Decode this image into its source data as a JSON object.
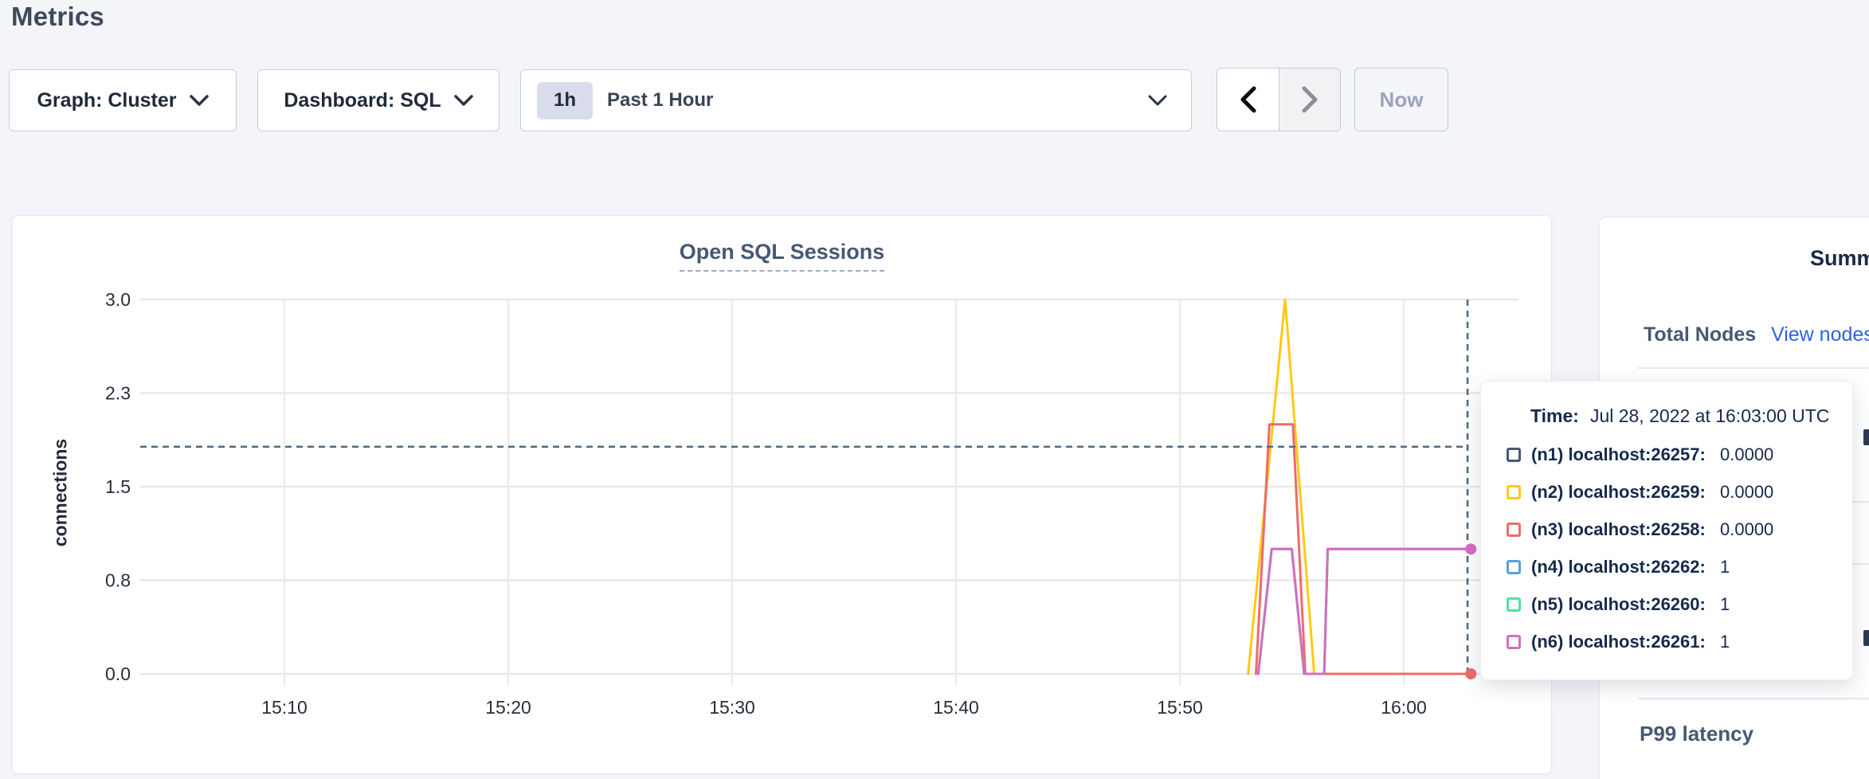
{
  "page": {
    "title": "Metrics"
  },
  "controls": {
    "graph_dropdown": {
      "label": "Graph: Cluster"
    },
    "dashboard_dropdown": {
      "label": "Dashboard: SQL"
    },
    "time_selector": {
      "badge": "1h",
      "label": "Past 1 Hour"
    },
    "now_button_label": "Now"
  },
  "chart_data": {
    "type": "line",
    "title": "Open SQL Sessions",
    "ylabel": "connections",
    "ylim": [
      0,
      3
    ],
    "grid": true,
    "yticks": [
      {
        "label": "3.0",
        "value": 3
      },
      {
        "label": "2.3",
        "value": 2.25
      },
      {
        "label": "1.5",
        "value": 1.5
      },
      {
        "label": "0.8",
        "value": 0.75
      },
      {
        "label": "0.0",
        "value": 0
      }
    ],
    "xticks": [
      {
        "label": "15:10",
        "minute": 10
      },
      {
        "label": "15:20",
        "minute": 20
      },
      {
        "label": "15:30",
        "minute": 30
      },
      {
        "label": "15:40",
        "minute": 40
      },
      {
        "label": "15:50",
        "minute": 50
      },
      {
        "label": "16:00",
        "minute": 60
      }
    ],
    "series": [
      {
        "name": "(n1) localhost:26257",
        "color": "#475872",
        "value_at_cursor": "0.0000",
        "points": [
          [
            55.6,
            0
          ],
          [
            63,
            0
          ]
        ]
      },
      {
        "name": "(n4) localhost:26262",
        "color": "#5b9fd6",
        "value_at_cursor": "1",
        "points": [
          [
            53.5,
            0
          ],
          [
            54.1,
            1
          ],
          [
            55.0,
            1
          ],
          [
            55.55,
            0
          ],
          [
            56.45,
            0
          ],
          [
            56.6,
            1
          ],
          [
            63,
            1
          ]
        ]
      },
      {
        "name": "(n5) localhost:26260",
        "color": "#4fe2a1",
        "value_at_cursor": "1",
        "points": [
          [
            53.5,
            0
          ],
          [
            54.1,
            1
          ],
          [
            55.0,
            1
          ],
          [
            55.55,
            0
          ],
          [
            56.45,
            0
          ],
          [
            56.6,
            1
          ],
          [
            63,
            1
          ]
        ]
      },
      {
        "name": "(n2) localhost:26259",
        "color": "#ffc913",
        "value_at_cursor": "0.0000",
        "points": [
          [
            53.05,
            0
          ],
          [
            54.7,
            3
          ],
          [
            56.0,
            0
          ],
          [
            63,
            0
          ]
        ]
      },
      {
        "name": "(n3) localhost:26258",
        "color": "#ef6a6a",
        "value_at_cursor": "0.0000",
        "points": [
          [
            53.4,
            0
          ],
          [
            54.0,
            2
          ],
          [
            55.05,
            2
          ],
          [
            55.6,
            0
          ],
          [
            63,
            0
          ]
        ]
      },
      {
        "name": "(n6) localhost:26261",
        "color": "#d36fc0",
        "value_at_cursor": "1",
        "points": [
          [
            53.5,
            0
          ],
          [
            54.1,
            1
          ],
          [
            55.0,
            1
          ],
          [
            55.55,
            0
          ],
          [
            56.45,
            0
          ],
          [
            56.6,
            1
          ],
          [
            63,
            1
          ]
        ]
      }
    ],
    "crosshair": {
      "minute": 62.85,
      "hline_value": 1.82,
      "dots": [
        {
          "series": "(n6) localhost:26261",
          "minute": 63,
          "value": 1
        },
        {
          "series": "(n3) localhost:26258",
          "minute": 63,
          "value": 0
        }
      ]
    }
  },
  "tooltip": {
    "time_label": "Time:",
    "time_value": "Jul 28, 2022 at 16:03:00 UTC",
    "rows": [
      {
        "swatch": "#475872",
        "label": "(n1) localhost:26257:",
        "value": "0.0000"
      },
      {
        "swatch": "#ffc913",
        "label": "(n2) localhost:26259:",
        "value": "0.0000"
      },
      {
        "swatch": "#ef6a6a",
        "label": "(n3) localhost:26258:",
        "value": "0.0000"
      },
      {
        "swatch": "#5b9fd6",
        "label": "(n4) localhost:26262:",
        "value": "1"
      },
      {
        "swatch": "#4fe2a1",
        "label": "(n5) localhost:26260:",
        "value": "1"
      },
      {
        "swatch": "#d36fc0",
        "label": "(n6) localhost:26261:",
        "value": "1"
      }
    ]
  },
  "sidebar": {
    "title": "Summary",
    "total_nodes_label": "Total Nodes",
    "view_nodes_link": "View nodes",
    "p99_label": "P99 latency"
  },
  "colors": {
    "page_bg": "#f4f5f9",
    "card_border": "#e4e7ef",
    "heading_text": "#3e4a5c",
    "slate_text": "#475872",
    "dark_text": "#1f2a3a",
    "link_blue": "#2e62de",
    "crosshair": "#4a6a84",
    "gridline": "#e9e9e9",
    "disabled_text": "#9aa4ba"
  }
}
